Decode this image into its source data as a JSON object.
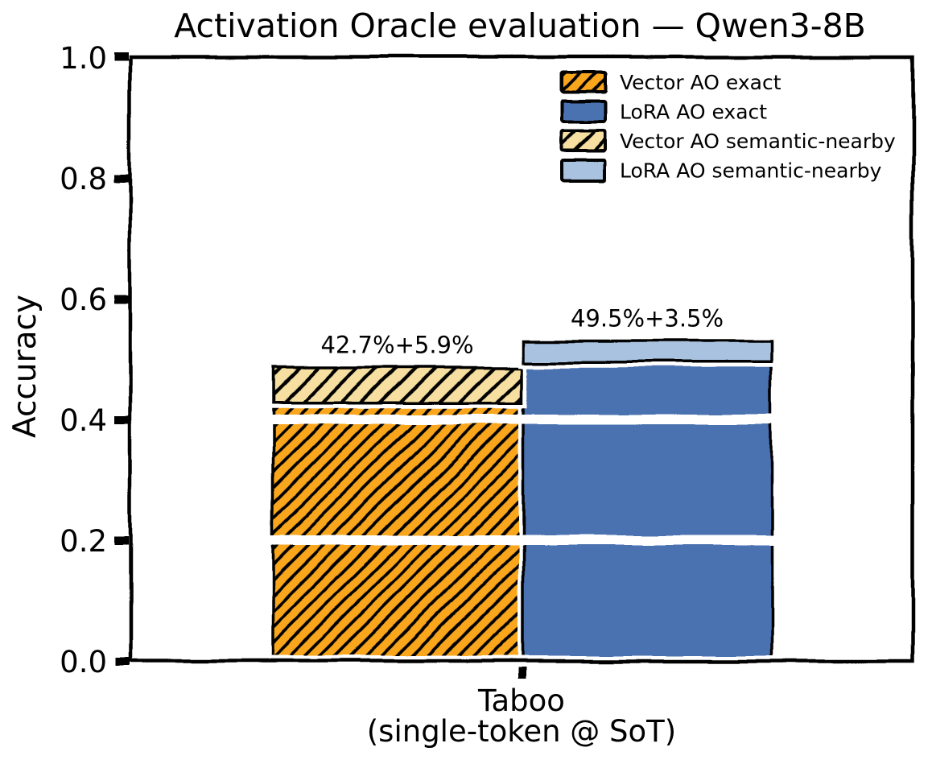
{
  "title": "Activation Oracle evaluation — Qwen3-8B",
  "chart_data": {
    "type": "bar",
    "stacked": true,
    "style": "xkcd-handdrawn",
    "title": "Activation Oracle evaluation — Qwen3-8B",
    "ylabel": "Accuracy",
    "xlabel": "",
    "ylim": [
      0.0,
      1.0
    ],
    "yticks": [
      0.0,
      0.2,
      0.4,
      0.6,
      0.8,
      1.0
    ],
    "categories": [
      "Taboo (single-token @ SoT)"
    ],
    "category_lines": [
      "Taboo",
      "(single-token @ SoT)"
    ],
    "white_gridlines": [
      0.2,
      0.4
    ],
    "legend_position": "upper right",
    "grid": false,
    "bars": [
      {
        "name": "Vector AO",
        "exact": 0.427,
        "semantic_nearby": 0.059,
        "total": 0.486,
        "annotation": "42.7%+5.9%"
      },
      {
        "name": "LoRA AO",
        "exact": 0.495,
        "semantic_nearby": 0.035,
        "total": 0.53,
        "annotation": "49.5%+3.5%"
      }
    ],
    "legend": [
      {
        "label": "Vector AO exact",
        "swatch": "orange_hatch"
      },
      {
        "label": "LoRA AO exact",
        "swatch": "blue"
      },
      {
        "label": "Vector AO semantic-nearby",
        "swatch": "cream_hatch"
      },
      {
        "label": "LoRA AO semantic-nearby",
        "swatch": "lightblue"
      }
    ],
    "colors": {
      "vector_exact": "#F9A61C",
      "vector_nearby": "#F6DFA0",
      "lora_exact": "#4C72B0",
      "lora_nearby": "#A8C2DF",
      "edge": "#000000",
      "background": "#FFFFFF"
    }
  }
}
